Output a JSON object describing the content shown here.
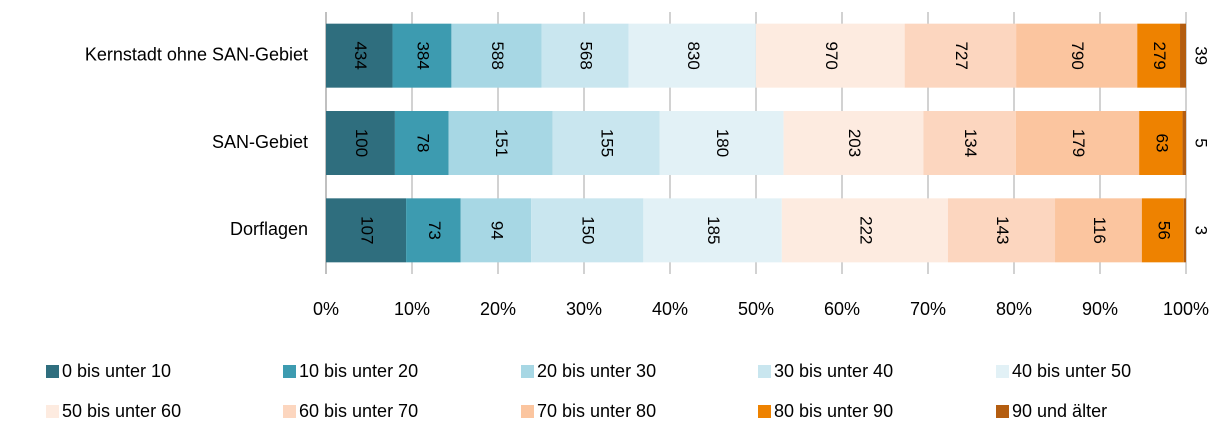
{
  "chart_data": {
    "type": "bar",
    "orientation": "horizontal",
    "stacked": "percent",
    "categories": [
      "Kernstadt ohne SAN-Gebiet",
      "SAN-Gebiet",
      "Dorflagen"
    ],
    "series": [
      {
        "name": "0 bis unter 10",
        "color": "#2f6e7e",
        "values": [
          434,
          100,
          107
        ]
      },
      {
        "name": "10 bis unter 20",
        "color": "#3d9bb0",
        "values": [
          384,
          78,
          73
        ]
      },
      {
        "name": "20 bis unter 30",
        "color": "#a7d7e4",
        "values": [
          588,
          151,
          94
        ]
      },
      {
        "name": "30 bis unter 40",
        "color": "#c9e6ef",
        "values": [
          568,
          155,
          150
        ]
      },
      {
        "name": "40 bis unter 50",
        "color": "#e2f1f6",
        "values": [
          830,
          180,
          185
        ]
      },
      {
        "name": "50 bis unter 60",
        "color": "#fdebe0",
        "values": [
          970,
          203,
          222
        ]
      },
      {
        "name": "60 bis unter 70",
        "color": "#fcd6bf",
        "values": [
          727,
          134,
          143
        ]
      },
      {
        "name": "70 bis unter 80",
        "color": "#fbc59f",
        "values": [
          790,
          179,
          116
        ]
      },
      {
        "name": "80 bis unter 90",
        "color": "#ee8200",
        "values": [
          279,
          63,
          56
        ]
      },
      {
        "name": "90 und älter",
        "color": "#b45d10",
        "values": [
          39,
          5,
          3
        ]
      }
    ],
    "xlim": [
      0,
      100
    ],
    "xticks": [
      {
        "value": 0,
        "label": "0%"
      },
      {
        "value": 10,
        "label": "10%"
      },
      {
        "value": 20,
        "label": "20%"
      },
      {
        "value": 30,
        "label": "30%"
      },
      {
        "value": 40,
        "label": "40%"
      },
      {
        "value": 50,
        "label": "50%"
      },
      {
        "value": 60,
        "label": "60%"
      },
      {
        "value": 70,
        "label": "70%"
      },
      {
        "value": 80,
        "label": "80%"
      },
      {
        "value": 90,
        "label": "90%"
      },
      {
        "value": 100,
        "label": "100%"
      }
    ],
    "grid": true,
    "legend": "bottom"
  }
}
